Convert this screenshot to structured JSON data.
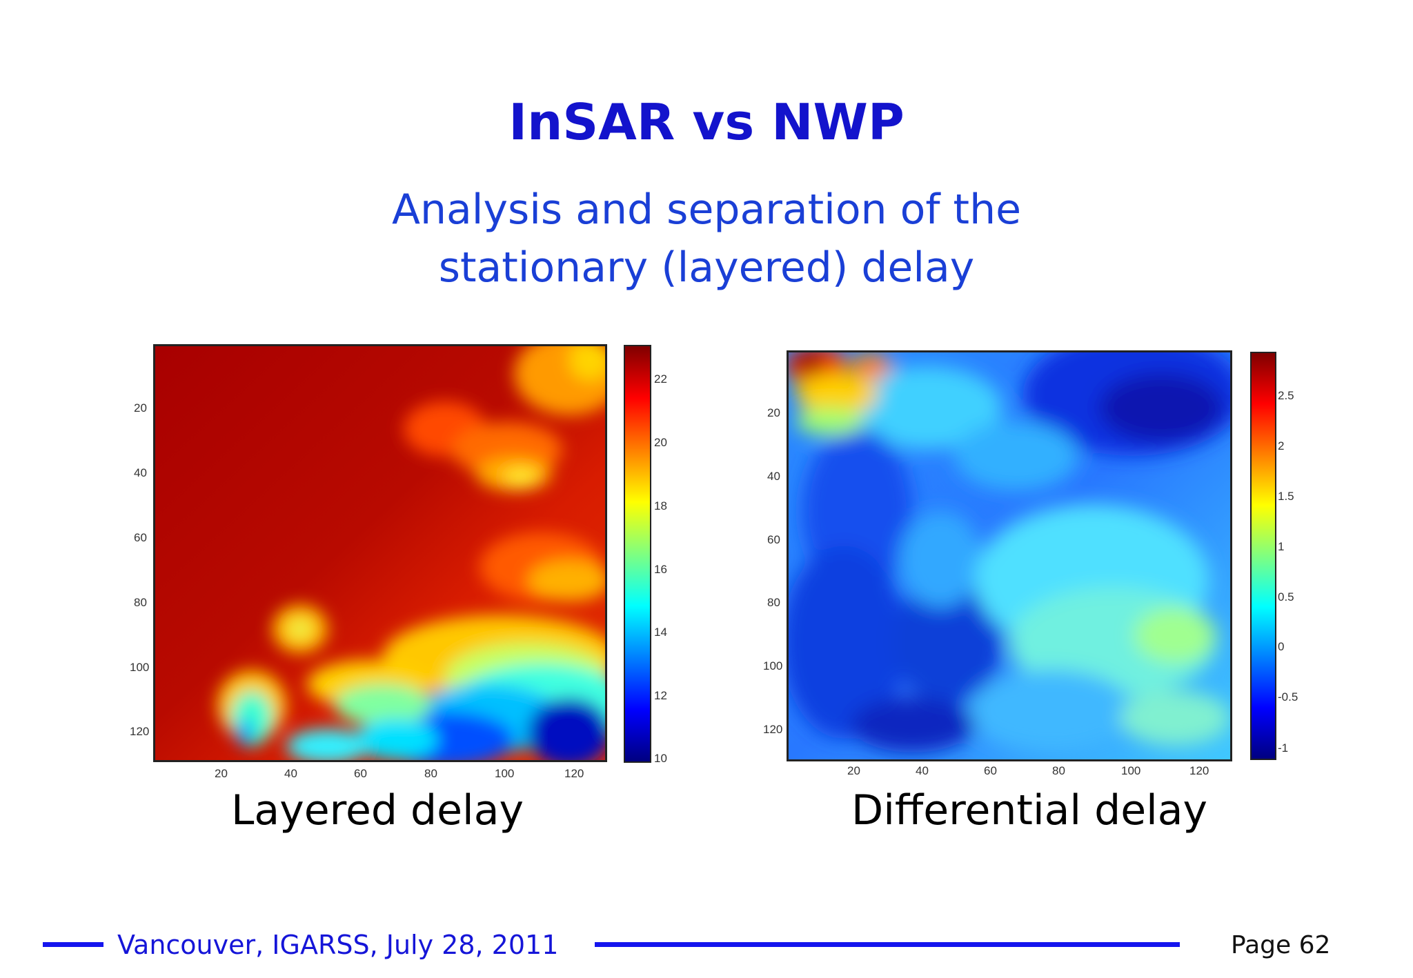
{
  "slide": {
    "title": "InSAR vs NWP",
    "subtitle_lines": [
      "Analysis and separation of the",
      "stationary (layered) delay"
    ]
  },
  "figures": [
    {
      "caption": "Layered delay",
      "x_ticks": [
        "20",
        "40",
        "60",
        "80",
        "100",
        "120"
      ],
      "y_ticks": [
        "20",
        "40",
        "60",
        "80",
        "100",
        "120"
      ],
      "colorbar_ticks": [
        "22",
        "20",
        "18",
        "16",
        "14",
        "12",
        "10"
      ],
      "colormap": "jet"
    },
    {
      "caption": "Differential delay",
      "x_ticks": [
        "20",
        "40",
        "60",
        "80",
        "100",
        "120"
      ],
      "y_ticks": [
        "20",
        "40",
        "60",
        "80",
        "100",
        "120"
      ],
      "colorbar_ticks": [
        "2.5",
        "2",
        "1.5",
        "1",
        "0.5",
        "0",
        "-0.5",
        "-1"
      ],
      "colormap": "jet"
    }
  ],
  "footer": {
    "text": "Vancouver, IGARSS, July 28, 2011",
    "page": "Page 62",
    "line_color": "#1515ee"
  }
}
